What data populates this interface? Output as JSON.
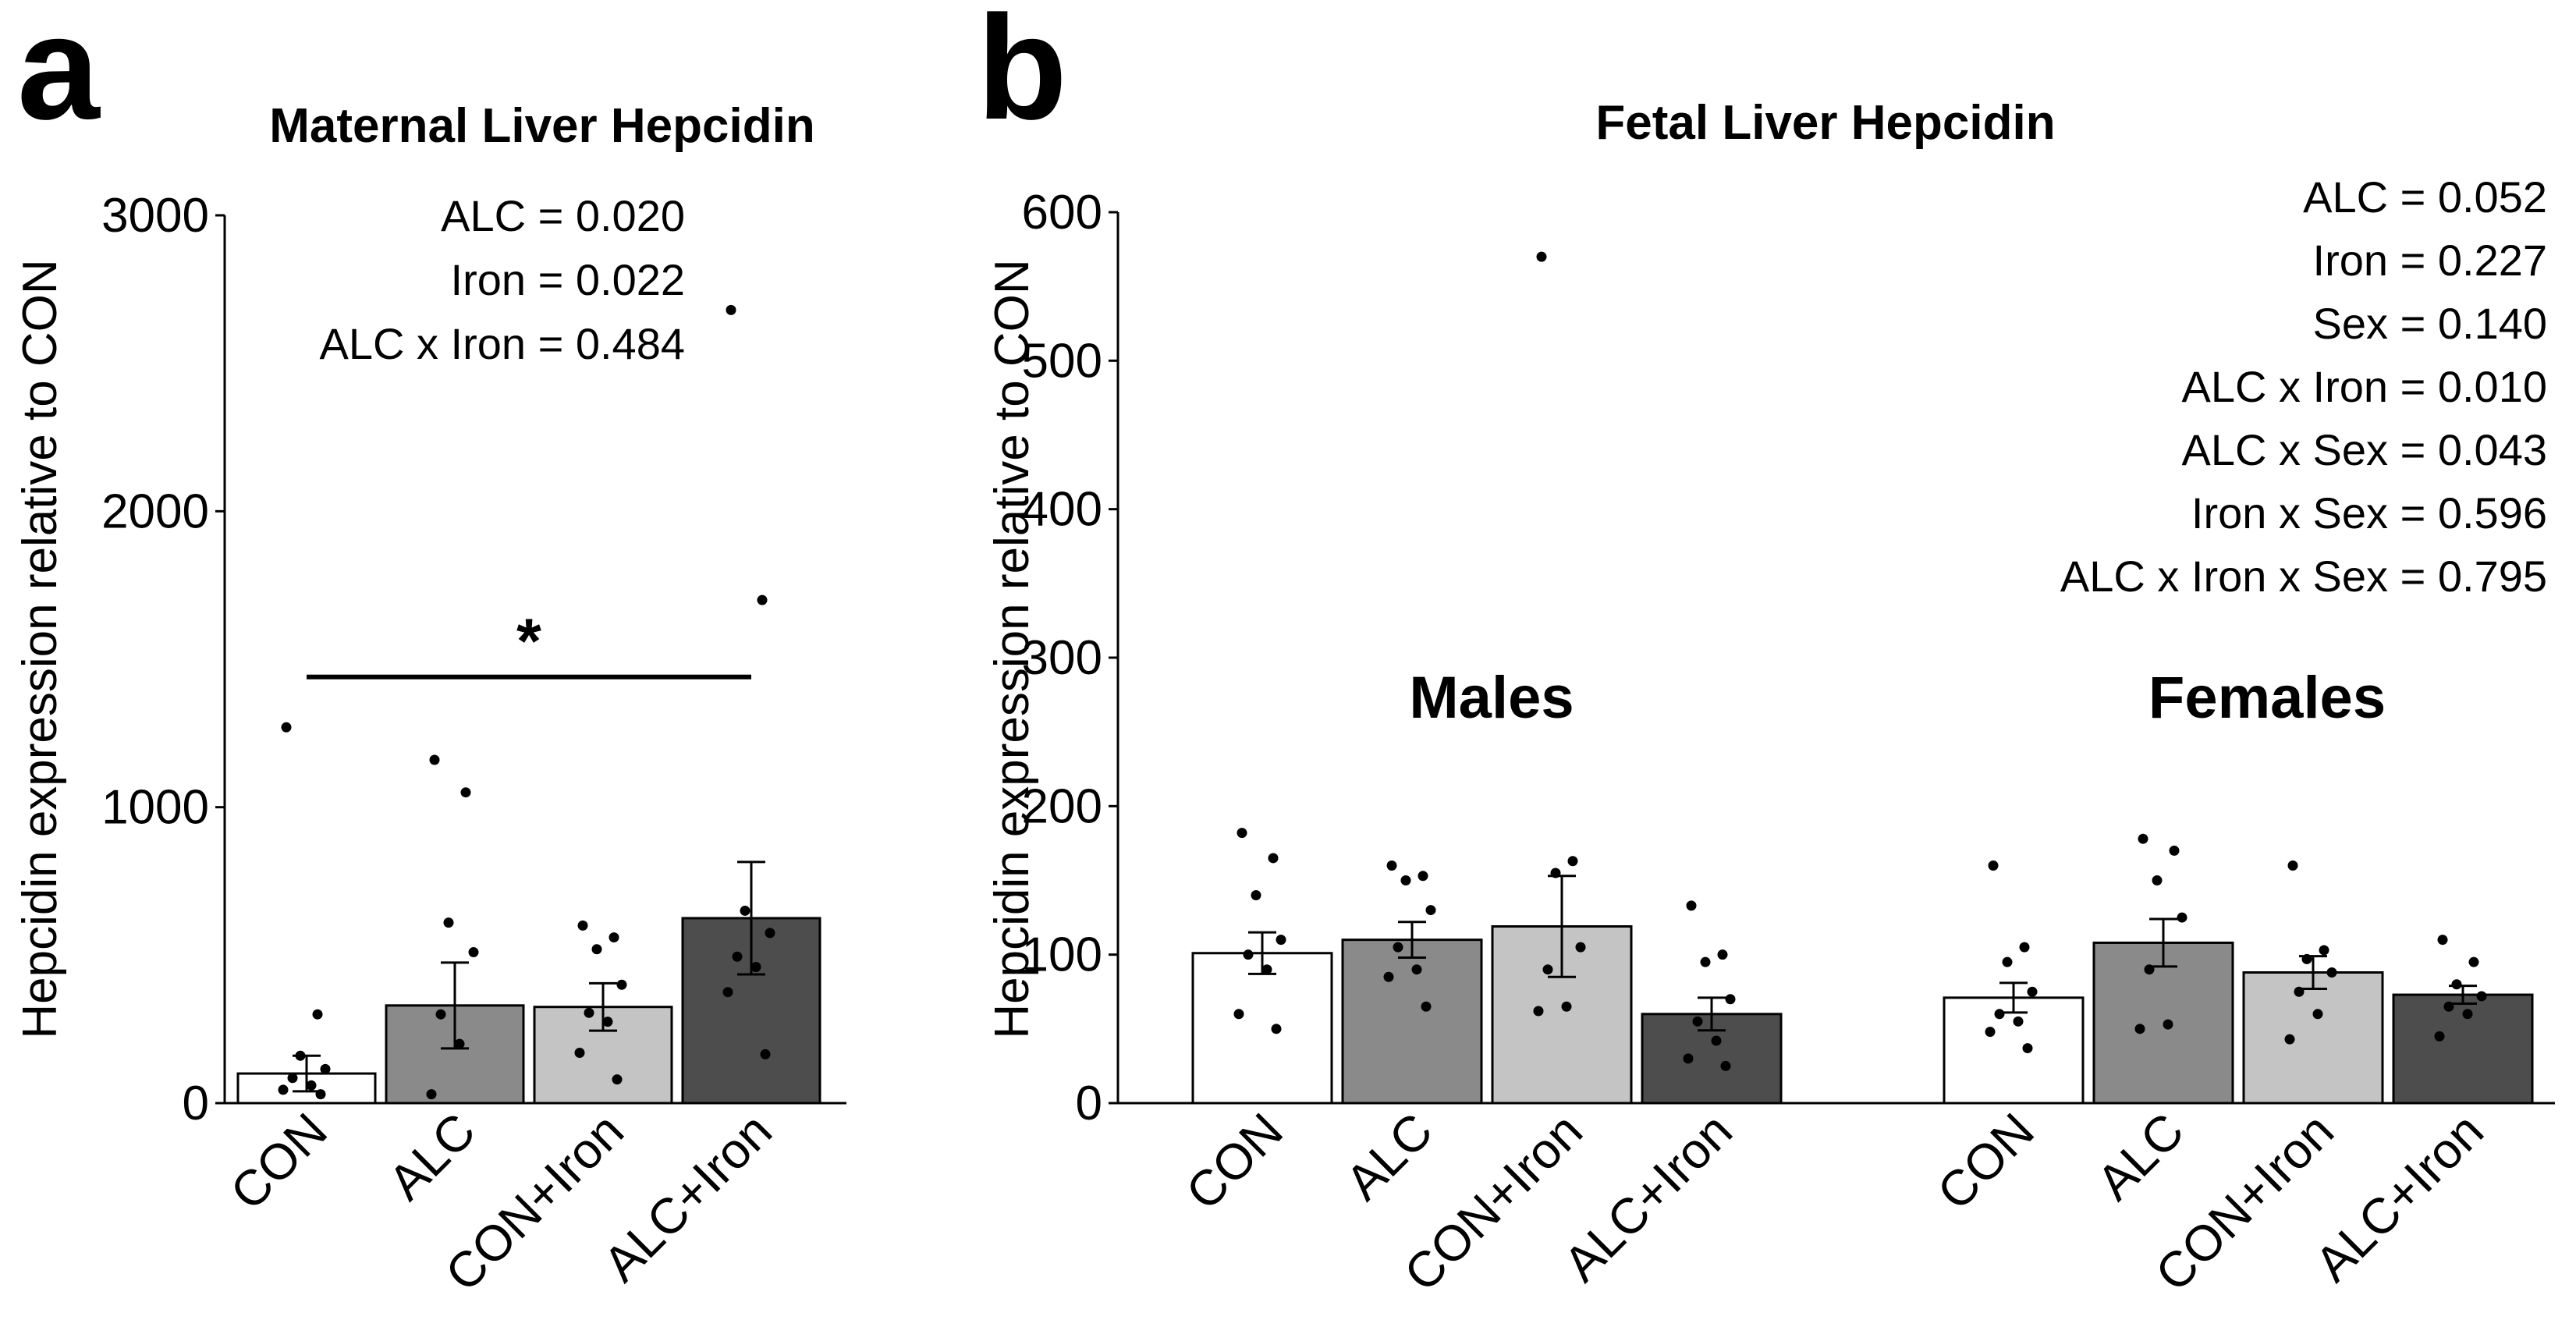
{
  "panels": {
    "a": {
      "letter": "a"
    },
    "b": {
      "letter": "b"
    }
  },
  "chart_data": [
    {
      "type": "bar",
      "panel": "a",
      "title": "Maternal Liver Hepcidin",
      "xlabel": "",
      "ylabel": "Hepcidin expression relative to CON",
      "ylim": [
        0,
        3000
      ],
      "yticks": [
        0,
        1000,
        2000,
        3000
      ],
      "categories": [
        "CON",
        "ALC",
        "CON+Iron",
        "ALC+Iron"
      ],
      "colors": [
        "#ffffff",
        "#8a8a8a",
        "#c4c4c4",
        "#4d4d4d"
      ],
      "values": [
        100,
        330,
        325,
        625
      ],
      "sem": [
        60,
        145,
        80,
        190
      ],
      "points": [
        [
          1270,
          300,
          160,
          115,
          85,
          60,
          45,
          30
        ],
        [
          1160,
          1050,
          610,
          510,
          300,
          200,
          30
        ],
        [
          600,
          560,
          520,
          400,
          305,
          275,
          170,
          80
        ],
        [
          2680,
          1700,
          650,
          575,
          495,
          460,
          375,
          165
        ]
      ],
      "stats": [
        "ALC = 0.020",
        "Iron = 0.022",
        "ALC x Iron = 0.484"
      ],
      "significance": {
        "from": "CON",
        "to": "ALC+Iron",
        "y": 1440,
        "label": "*"
      }
    },
    {
      "type": "bar",
      "panel": "b",
      "title": "Fetal Liver Hepcidin",
      "xlabel": "",
      "ylabel": "Hepcidin expression relative to CON",
      "ylim": [
        0,
        600
      ],
      "yticks": [
        0,
        100,
        200,
        300,
        400,
        500,
        600
      ],
      "groups": [
        "Males",
        "Females"
      ],
      "categories": [
        "CON",
        "ALC",
        "CON+Iron",
        "ALC+Iron"
      ],
      "colors": [
        "#ffffff",
        "#8a8a8a",
        "#c4c4c4",
        "#4d4d4d"
      ],
      "series": [
        {
          "name": "Males",
          "values": [
            101,
            110,
            119,
            60
          ],
          "sem": [
            14,
            12,
            34,
            11
          ],
          "points": [
            [
              182,
              165,
              140,
              110,
              100,
              90,
              60,
              50
            ],
            [
              160,
              153,
              150,
              130,
              105,
              90,
              85,
              65
            ],
            [
              570,
              163,
              155,
              105,
              90,
              65,
              62
            ],
            [
              133,
              100,
              95,
              70,
              55,
              42,
              30,
              25
            ]
          ]
        },
        {
          "name": "Females",
          "values": [
            71,
            108,
            88,
            73
          ],
          "sem": [
            10,
            16,
            11,
            6
          ],
          "points": [
            [
              160,
              105,
              95,
              75,
              60,
              55,
              48,
              37
            ],
            [
              178,
              170,
              150,
              125,
              90,
              53,
              50
            ],
            [
              160,
              103,
              97,
              88,
              75,
              60,
              43
            ],
            [
              110,
              95,
              80,
              72,
              65,
              60,
              45
            ]
          ]
        }
      ],
      "stats": [
        "ALC = 0.052",
        "Iron = 0.227",
        "Sex = 0.140",
        "ALC x Iron = 0.010",
        "ALC x Sex = 0.043",
        "Iron x Sex = 0.596",
        "ALC x Iron x Sex = 0.795"
      ]
    }
  ]
}
